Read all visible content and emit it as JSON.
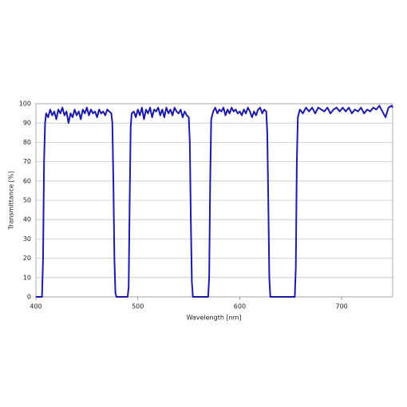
{
  "chart_data": {
    "type": "line",
    "xlabel": "Wavelength [nm]",
    "ylabel": "Transmittance [%]",
    "xlim": [
      400,
      750
    ],
    "xticks": [
      400,
      500,
      600,
      700
    ],
    "ylim": [
      0,
      100
    ],
    "yticks": [
      0,
      10,
      20,
      30,
      40,
      50,
      60,
      70,
      80,
      90,
      100
    ],
    "grid": true,
    "series": [
      {
        "color": "#1b1ba8",
        "x": [
          400,
          406,
          407,
          408,
          409,
          410,
          412,
          414,
          416,
          418,
          420,
          422,
          424,
          426,
          428,
          430,
          432,
          434,
          436,
          438,
          440,
          442,
          444,
          446,
          448,
          450,
          452,
          454,
          456,
          458,
          460,
          462,
          464,
          466,
          468,
          470,
          472,
          474,
          475,
          476,
          477,
          478,
          479,
          490,
          491,
          492,
          493,
          494,
          496,
          498,
          500,
          502,
          504,
          506,
          508,
          510,
          512,
          514,
          516,
          518,
          520,
          522,
          524,
          526,
          528,
          530,
          532,
          534,
          536,
          538,
          540,
          542,
          544,
          546,
          548,
          550,
          551,
          552,
          553,
          554,
          569,
          570,
          571,
          572,
          574,
          576,
          578,
          580,
          582,
          584,
          586,
          588,
          590,
          592,
          594,
          596,
          598,
          600,
          602,
          604,
          606,
          608,
          610,
          612,
          614,
          616,
          618,
          620,
          622,
          624,
          626,
          627,
          628,
          629,
          630,
          654,
          655,
          656,
          657,
          659,
          662,
          665,
          668,
          671,
          674,
          677,
          680,
          683,
          686,
          689,
          692,
          695,
          698,
          701,
          704,
          707,
          710,
          713,
          716,
          719,
          722,
          725,
          728,
          731,
          734,
          737,
          740,
          743,
          746,
          749,
          750
        ],
        "values": [
          0,
          0,
          20,
          70,
          90,
          95,
          93,
          97,
          94,
          96,
          92,
          97,
          95,
          98,
          94,
          96,
          90,
          95,
          93,
          97,
          94,
          96,
          92,
          97,
          95,
          98,
          94,
          97,
          95,
          96,
          93,
          97,
          95,
          96,
          94,
          97,
          96,
          95,
          90,
          60,
          20,
          2,
          0,
          0,
          5,
          50,
          88,
          95,
          96,
          93,
          97,
          94,
          98,
          92,
          97,
          95,
          98,
          93,
          97,
          96,
          98,
          94,
          97,
          93,
          98,
          95,
          97,
          94,
          98,
          96,
          95,
          97,
          93,
          96,
          94,
          93,
          80,
          40,
          8,
          0,
          0,
          10,
          60,
          92,
          96,
          98,
          95,
          97,
          96,
          98,
          94,
          97,
          95,
          98,
          96,
          97,
          95,
          96,
          94,
          97,
          95,
          98,
          96,
          93,
          96,
          94,
          97,
          98,
          95,
          97,
          96,
          85,
          50,
          10,
          0,
          0,
          15,
          70,
          93,
          97,
          95,
          98,
          96,
          98,
          95,
          98,
          97,
          96,
          98,
          95,
          97,
          98,
          96,
          98,
          96,
          98,
          95,
          97,
          96,
          98,
          95,
          97,
          96,
          98,
          97,
          99,
          96,
          93,
          98,
          99,
          98
        ]
      }
    ]
  }
}
